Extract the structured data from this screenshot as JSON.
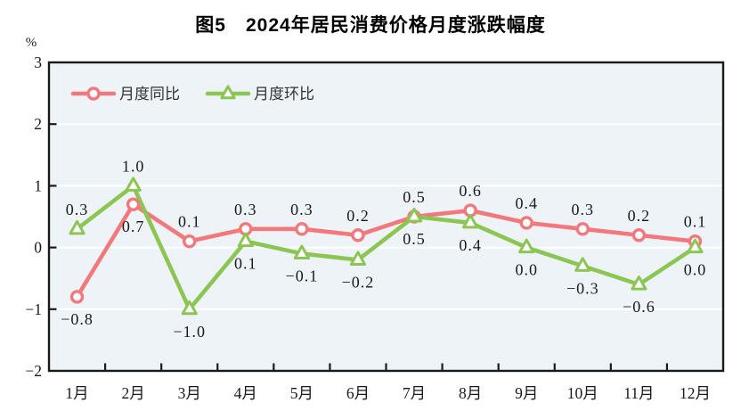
{
  "chart_data": {
    "type": "line",
    "title": "图5　2024年居民消费价格月度涨跌幅度",
    "unit": "%",
    "categories": [
      "1月",
      "2月",
      "3月",
      "4月",
      "5月",
      "6月",
      "7月",
      "8月",
      "9月",
      "10月",
      "11月",
      "12月"
    ],
    "series": [
      {
        "id": "yoy",
        "name": "月度同比",
        "marker": "circle",
        "color": "#F2787B",
        "values": [
          -0.8,
          0.7,
          0.1,
          0.3,
          0.3,
          0.2,
          0.5,
          0.6,
          0.4,
          0.3,
          0.2,
          0.1
        ],
        "labels": [
          "−0.8",
          "0.7",
          "0.1",
          "0.3",
          "0.3",
          "0.2",
          "0.5",
          "0.6",
          "0.4",
          "0.3",
          "0.2",
          "0.1"
        ]
      },
      {
        "id": "mom",
        "name": "月度环比",
        "marker": "triangle",
        "color": "#8CC652",
        "values": [
          0.3,
          1.0,
          -1.0,
          0.1,
          -0.1,
          -0.2,
          0.5,
          0.4,
          0.0,
          -0.3,
          -0.6,
          0.0
        ],
        "labels": [
          "0.3",
          "1.0",
          "−1.0",
          "0.1",
          "−0.1",
          "−0.2",
          "0.5",
          "0.4",
          "0.0",
          "−0.3",
          "−0.6",
          "0.0"
        ]
      }
    ],
    "ylim": [
      -2,
      3
    ],
    "yticks": [
      3,
      2,
      1,
      0,
      -1,
      -2
    ],
    "ytick_labels": [
      "3",
      "2",
      "1",
      "0",
      "−1",
      "−2"
    ],
    "grid": true,
    "legend_position": "top-left",
    "colors": {
      "plot_bg": "#EDF3F7",
      "gridline": "#FFFFFF",
      "axis": "#1A1A1A",
      "label_text": "#1A1A1A",
      "legend_text": "#333333"
    }
  }
}
